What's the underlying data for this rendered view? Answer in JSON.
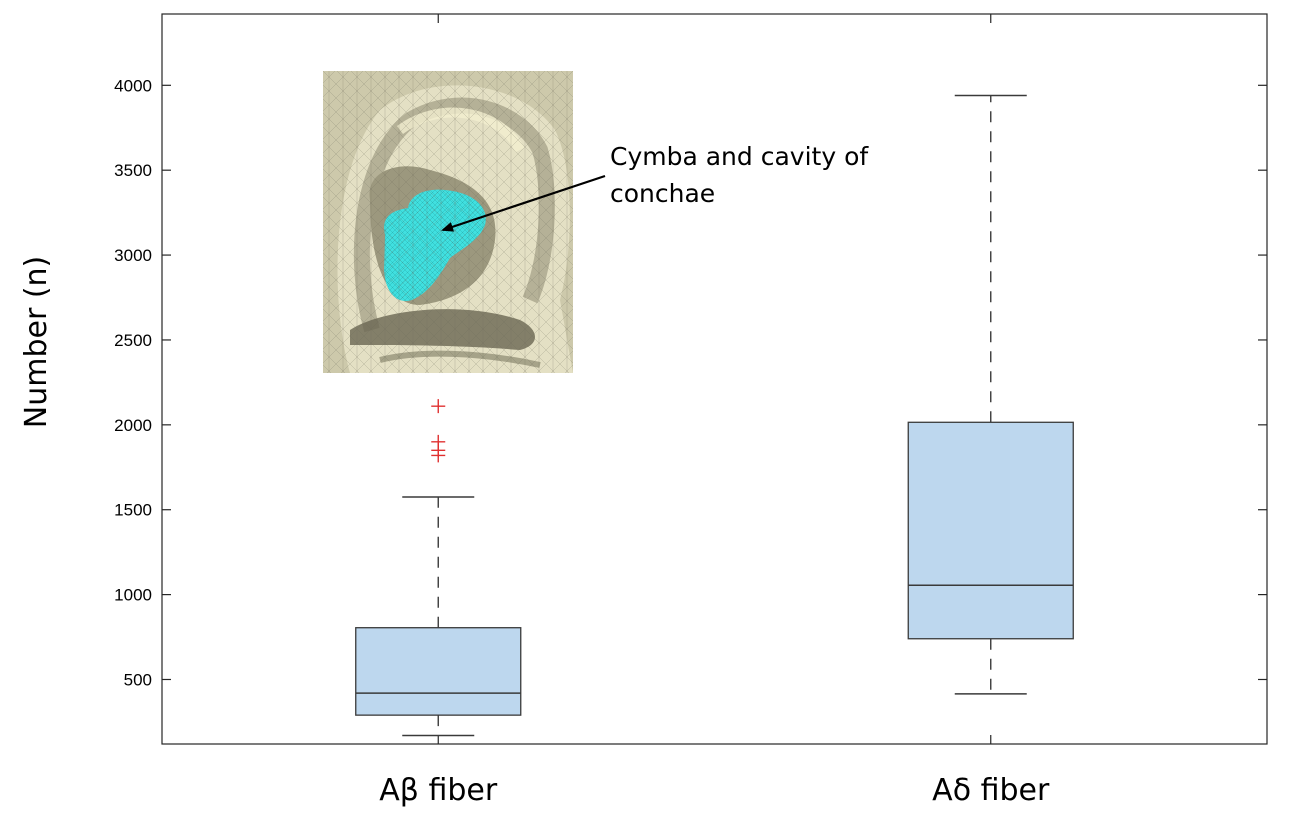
{
  "chart_data": {
    "type": "box",
    "ylabel": "Number (n)",
    "xlabel": "",
    "ylim": [
      120,
      4420
    ],
    "yticks": [
      500,
      1000,
      1500,
      2000,
      2500,
      3000,
      3500,
      4000
    ],
    "ytick_labels": [
      "500",
      "1000",
      "1500",
      "2000",
      "2500",
      "3000",
      "3500",
      "4000"
    ],
    "grid": false,
    "categories": [
      "Aβ fiber",
      "Aδ fiber"
    ],
    "boxes": [
      {
        "label": "Aβ fiber",
        "whisker_low": 170,
        "q1": 290,
        "median": 420,
        "q3": 805,
        "whisker_high": 1575,
        "outliers": [
          1820,
          1850,
          1900,
          2110
        ]
      },
      {
        "label": "Aδ fiber",
        "whisker_low": 415,
        "q1": 740,
        "median": 1055,
        "q3": 2015,
        "whisker_high": 3940,
        "outliers": []
      }
    ],
    "annotation": {
      "line1": "Cymba and cavity of",
      "line2": "conchae"
    },
    "colors": {
      "box_fill": "#bdd7ee",
      "box_edge": "#3a3a3a",
      "outlier": "#e03030",
      "highlight": "#40e0e0",
      "ear_skin": "#d8d4b8"
    }
  }
}
